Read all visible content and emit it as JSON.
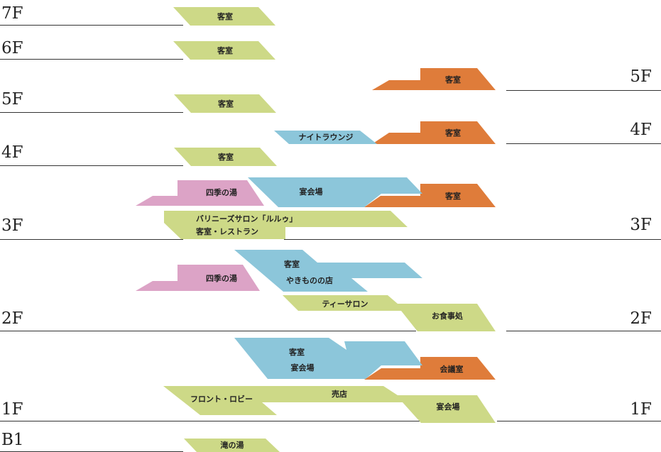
{
  "floors_left": {
    "7F": "7F",
    "6F": "6F",
    "5F": "5F",
    "4F": "4F",
    "3F": "3F",
    "2F": "2F",
    "1F": "1F",
    "B1": "B1"
  },
  "floors_right": {
    "5F": "5F",
    "4F": "4F",
    "3F": "3F",
    "2F": "2F",
    "1F": "1F"
  },
  "rooms": {
    "guest_room": "客室",
    "night_lounge": "ナイトラウンジ",
    "shiki_bath": "四季の湯",
    "banquet_hall": "宴会場",
    "bali_salon": "バリニーズサロン「ルルゥ」",
    "guest_room_restaurant": "客室・レストラン",
    "yakimono_shop": "やきものの店",
    "tea_salon": "ティーサロン",
    "dining": "お食事処",
    "conference_room": "会議室",
    "front_lobby": "フロント・ロビー",
    "shop": "売店",
    "taki_bath": "滝の湯"
  },
  "colors": {
    "green": "#cdd987",
    "orange": "#df7c3a",
    "blue": "#8cc6da",
    "pink": "#dca3c6"
  }
}
